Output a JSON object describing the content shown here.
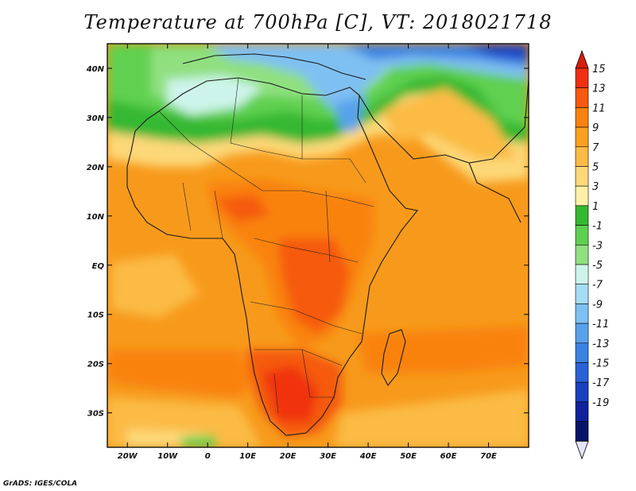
{
  "title": "Temperature at 700hPa [C], VT: 2018021718",
  "credit": "GrADS: IGES/COLA",
  "map": {
    "projection": "latlon",
    "lon_range": [
      -25,
      80
    ],
    "lat_range": [
      -37,
      45
    ],
    "lon_ticks": [
      {
        "value": -20,
        "label": "20W"
      },
      {
        "value": -10,
        "label": "10W"
      },
      {
        "value": 0,
        "label": "0"
      },
      {
        "value": 10,
        "label": "10E"
      },
      {
        "value": 20,
        "label": "20E"
      },
      {
        "value": 30,
        "label": "30E"
      },
      {
        "value": 40,
        "label": "40E"
      },
      {
        "value": 50,
        "label": "50E"
      },
      {
        "value": 60,
        "label": "60E"
      },
      {
        "value": 70,
        "label": "70E"
      }
    ],
    "lat_ticks": [
      {
        "value": 40,
        "label": "40N"
      },
      {
        "value": 30,
        "label": "30N"
      },
      {
        "value": 20,
        "label": "20N"
      },
      {
        "value": 10,
        "label": "10N"
      },
      {
        "value": 0,
        "label": "EQ"
      },
      {
        "value": -10,
        "label": "10S"
      },
      {
        "value": -20,
        "label": "20S"
      },
      {
        "value": -30,
        "label": "30S"
      }
    ]
  },
  "colorbar": {
    "levels": [
      "15",
      "13",
      "11",
      "9",
      "7",
      "5",
      "3",
      "1",
      "-1",
      "-3",
      "-5",
      "-7",
      "-9",
      "-11",
      "-13",
      "-15",
      "-17",
      "-19"
    ],
    "colors": [
      "#f03010",
      "#f55a0f",
      "#f9820f",
      "#f9a020",
      "#fbbb45",
      "#fdd878",
      "#fff0a8",
      "#35b830",
      "#5ed050",
      "#90e080",
      "#cdf4ea",
      "#a6dcf5",
      "#7fc0f2",
      "#58a2ec",
      "#3a82e2",
      "#2a62d6",
      "#1a40c0",
      "#0f229c",
      "#081468"
    ],
    "top_arrow_color": "#d81d0c",
    "bottom_arrow_color": "#e4e4fb"
  }
}
